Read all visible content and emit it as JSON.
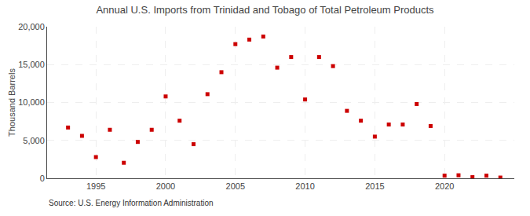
{
  "chart_data": {
    "type": "scatter",
    "title": "Annual U.S. Imports from Trinidad and Tobago of Total Petroleum Products",
    "y_label": "Thousand Barrels",
    "annotations": [
      "Source: U.S. Energy Information Administration"
    ],
    "x": [
      1993,
      1994,
      1995,
      1996,
      1997,
      1998,
      1999,
      2000,
      2001,
      2002,
      2003,
      2004,
      2005,
      2006,
      2007,
      2008,
      2009,
      2010,
      2011,
      2012,
      2013,
      2014,
      2015,
      2016,
      2017,
      2018,
      2019,
      2020,
      2021,
      2022,
      2023,
      2024
    ],
    "values": [
      6700,
      5600,
      2800,
      6400,
      2050,
      4800,
      6400,
      10800,
      7600,
      4500,
      11100,
      14000,
      17700,
      18300,
      18700,
      14600,
      16000,
      10400,
      16000,
      14800,
      8900,
      7600,
      5500,
      7100,
      7100,
      9800,
      6900,
      350,
      400,
      150,
      350,
      100
    ],
    "color": "#cc0000",
    "marker": "square",
    "xlim": [
      1991.5,
      2025
    ],
    "xticks": [
      1995,
      2000,
      2005,
      2010,
      2015,
      2020
    ],
    "ylim": [
      0,
      20000
    ],
    "yticks": [
      0,
      {
        "value": 5000,
        "label": "5,000"
      },
      {
        "value": 10000,
        "label": "10,000"
      },
      {
        "value": 15000,
        "label": "15,000"
      },
      {
        "value": 20000,
        "label": "20,000"
      }
    ],
    "grid": true
  }
}
